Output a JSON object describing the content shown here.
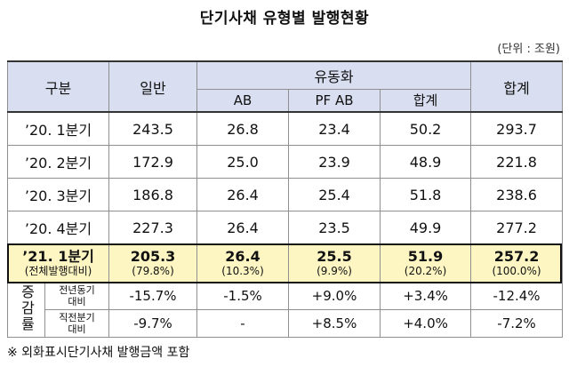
{
  "title": "단기사채 유형별 발행현황",
  "unit": "(단위 : 조원)",
  "headers": {
    "category": "구분",
    "general": "일반",
    "liquidity": "유동화",
    "ab": "AB",
    "pfab": "PF AB",
    "subtotal": "합계",
    "total": "합계"
  },
  "rows": [
    {
      "label": "’20. 1분기",
      "general": "243.5",
      "ab": "26.8",
      "pfab": "23.4",
      "subtotal": "50.2",
      "total": "293.7"
    },
    {
      "label": "’20. 2분기",
      "general": "172.9",
      "ab": "25.0",
      "pfab": "23.9",
      "subtotal": "48.9",
      "total": "221.8"
    },
    {
      "label": "’20. 3분기",
      "general": "186.8",
      "ab": "26.4",
      "pfab": "25.4",
      "subtotal": "51.8",
      "total": "238.6"
    },
    {
      "label": "’20. 4분기",
      "general": "227.3",
      "ab": "26.4",
      "pfab": "23.5",
      "subtotal": "49.9",
      "total": "277.2"
    }
  ],
  "highlight": {
    "label": "’21. 1분기",
    "label_sub": "(전체발행대비)",
    "general": "205.3",
    "general_pct": "(79.8%)",
    "ab": "26.4",
    "ab_pct": "(10.3%)",
    "pfab": "25.5",
    "pfab_pct": "(9.9%)",
    "subtotal": "51.9",
    "subtotal_pct": "(20.2%)",
    "total": "257.2",
    "total_pct": "(100.0%)"
  },
  "rate": {
    "label": "증감률",
    "yoy": {
      "label_line1": "전년동기",
      "label_line2": "대비",
      "general": "-15.7%",
      "ab": "-1.5%",
      "pfab": "+9.0%",
      "subtotal": "+3.4%",
      "total": "-12.4%"
    },
    "qoq": {
      "label_line1": "직전분기",
      "label_line2": "대비",
      "general": "-9.7%",
      "ab": "-",
      "pfab": "+8.5%",
      "subtotal": "+4.0%",
      "total": "-7.2%"
    }
  },
  "footnote": "※ 외화표시단기사채 발행금액 포함"
}
